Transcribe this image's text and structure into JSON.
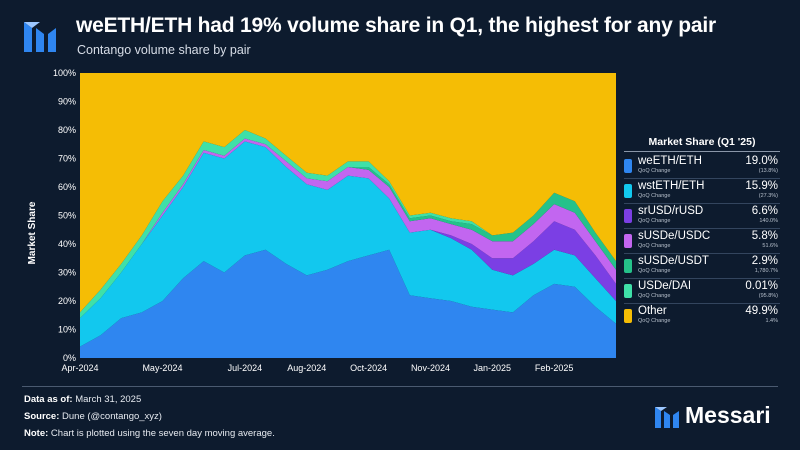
{
  "header": {
    "title": "weETH/ETH had 19% volume share in Q1, the highest for any pair",
    "subtitle": "Contango volume share by pair"
  },
  "legend": {
    "title": "Market Share (Q1 '25)",
    "sub_label": "QoQ Change",
    "items": [
      {
        "name": "weETH/ETH",
        "share": "19.0%",
        "change": "(13.8%)",
        "color": "#2f86f0"
      },
      {
        "name": "wstETH/ETH",
        "share": "15.9%",
        "change": "(27.3%)",
        "color": "#12c8ee"
      },
      {
        "name": "srUSD/rUSD",
        "share": "6.6%",
        "change": "140.0%",
        "color": "#7b3fe4"
      },
      {
        "name": "sUSDe/USDC",
        "share": "5.8%",
        "change": "51.6%",
        "color": "#c266f0"
      },
      {
        "name": "sUSDe/USDT",
        "share": "2.9%",
        "change": "1,780.7%",
        "color": "#25c28a"
      },
      {
        "name": "USDe/DAI",
        "share": "0.01%",
        "change": "(95.8%)",
        "color": "#3fe0a8"
      },
      {
        "name": "Other",
        "share": "49.9%",
        "change": "1.4%",
        "color": "#f5bd05"
      }
    ]
  },
  "chart_data": {
    "type": "area",
    "stacked": true,
    "normalized": true,
    "title": "weETH/ETH had 19% volume share in Q1, the highest for any pair",
    "subtitle": "Contango volume share by pair",
    "xlabel": "",
    "ylabel": "Market Share",
    "ylim": [
      0,
      100
    ],
    "y_ticks": [
      "0%",
      "10%",
      "20%",
      "30%",
      "40%",
      "50%",
      "60%",
      "70%",
      "80%",
      "90%",
      "100%"
    ],
    "x_ticks": [
      "Apr-2024",
      "May-2024",
      "Jul-2024",
      "Aug-2024",
      "Oct-2024",
      "Nov-2024",
      "Jan-2025",
      "Feb-2025"
    ],
    "x_tick_positions": [
      0,
      2,
      4,
      5.5,
      7,
      8.5,
      10,
      11.5
    ],
    "x": [
      0,
      0.5,
      1,
      1.5,
      2,
      2.5,
      3,
      3.5,
      4,
      4.5,
      5,
      5.5,
      6,
      6.5,
      7,
      7.5,
      8,
      8.5,
      9,
      9.5,
      10,
      10.5,
      11,
      11.5,
      12,
      12.5,
      13
    ],
    "series": [
      {
        "name": "weETH/ETH",
        "color": "#2f86f0",
        "values": [
          4,
          8,
          14,
          16,
          20,
          28,
          34,
          30,
          36,
          38,
          33,
          29,
          31,
          34,
          36,
          38,
          22,
          21,
          20,
          18,
          17,
          16,
          22,
          26,
          25,
          18,
          12
        ]
      },
      {
        "name": "wstETH/ETH",
        "color": "#12c8ee",
        "values": [
          10,
          13,
          16,
          24,
          30,
          32,
          38,
          40,
          40,
          36,
          34,
          32,
          28,
          30,
          27,
          18,
          22,
          24,
          22,
          20,
          14,
          13,
          11,
          12,
          11,
          10,
          8
        ]
      },
      {
        "name": "srUSD/rUSD",
        "color": "#7b3fe4",
        "values": [
          0,
          0,
          0,
          0,
          0,
          0,
          0,
          0,
          0,
          0,
          0,
          0,
          0,
          0,
          0,
          0,
          0,
          0,
          1,
          2,
          4,
          6,
          8,
          10,
          9,
          8,
          6
        ]
      },
      {
        "name": "sUSDe/USDC",
        "color": "#c266f0",
        "values": [
          0,
          0,
          0,
          0,
          1,
          1,
          1,
          1,
          1,
          1,
          2,
          2,
          3,
          3,
          3,
          4,
          4,
          4,
          4,
          5,
          6,
          6,
          6,
          6,
          6,
          5,
          5
        ]
      },
      {
        "name": "sUSDe/USDT",
        "color": "#25c28a",
        "values": [
          0,
          0,
          0,
          0,
          0,
          0,
          0,
          0,
          0,
          0,
          0,
          0,
          0,
          0,
          1,
          1,
          1,
          1,
          1,
          2,
          2,
          3,
          3,
          4,
          4,
          3,
          3
        ]
      },
      {
        "name": "USDe/DAI",
        "color": "#3fe0a8",
        "values": [
          2,
          3,
          3,
          3,
          4,
          3,
          3,
          3,
          3,
          2,
          2,
          2,
          2,
          2,
          2,
          1,
          1,
          1,
          1,
          1,
          0,
          0,
          0,
          0,
          0,
          0,
          0
        ]
      },
      {
        "name": "Other",
        "color": "#f5bd05",
        "values": [
          84,
          76,
          67,
          57,
          45,
          36,
          24,
          26,
          20,
          23,
          29,
          35,
          36,
          31,
          31,
          38,
          50,
          49,
          51,
          52,
          57,
          56,
          50,
          42,
          45,
          56,
          66
        ]
      }
    ]
  },
  "footer": {
    "data_as_of_label": "Data as of:",
    "data_as_of_value": "March 31, 2025",
    "source_label": "Source:",
    "source_value": "Dune (@contango_xyz)",
    "note_label": "Note:",
    "note_value": "Chart is plotted using the seven day moving average."
  },
  "brand": {
    "name": "Messari",
    "color": "#ffffff",
    "accent": "#2f86f0"
  }
}
